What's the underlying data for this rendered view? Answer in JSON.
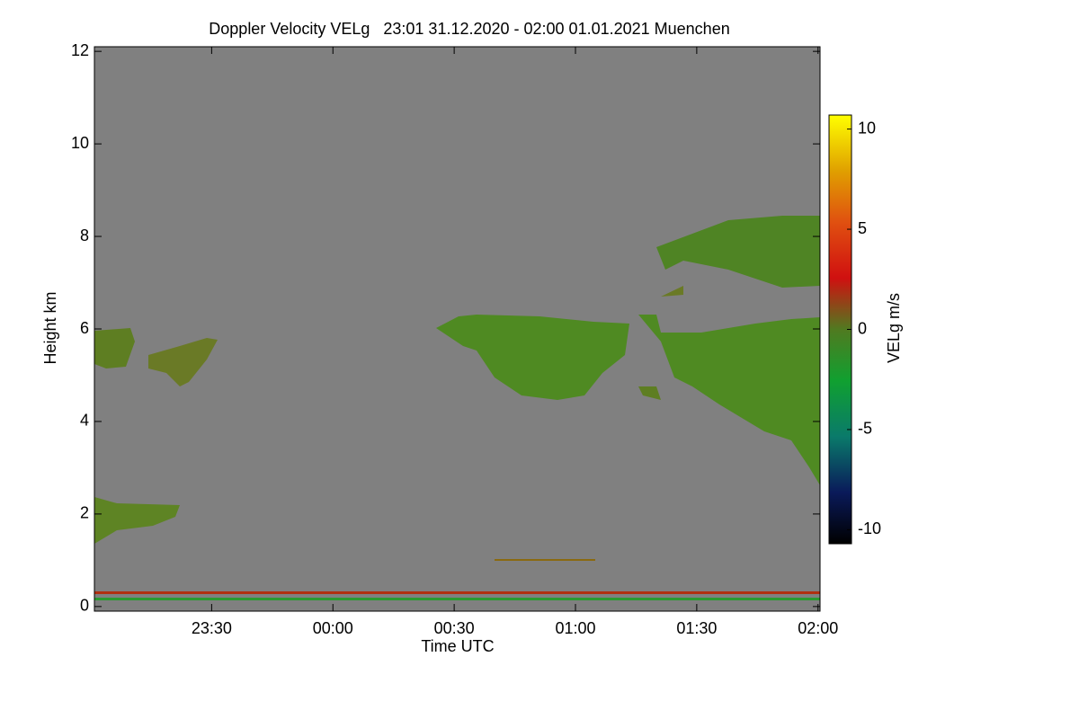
{
  "chart_data": {
    "type": "heatmap",
    "title": "Doppler Velocity VELg   23:01 31.12.2020 - 02:00 01.01.2021 Muenchen",
    "x_label": "Time UTC",
    "y_label": "Height km",
    "xlim": [
      1,
      180.5
    ],
    "xticks": [
      {
        "value": 30,
        "label": "23:30"
      },
      {
        "value": 60,
        "label": "00:00"
      },
      {
        "value": 90,
        "label": "00:30"
      },
      {
        "value": 120,
        "label": "01:00"
      },
      {
        "value": 150,
        "label": "01:30"
      },
      {
        "value": 180,
        "label": "02:00"
      }
    ],
    "ylim": [
      -0.1,
      12.1
    ],
    "yticks": [
      0,
      2,
      4,
      6,
      8,
      10,
      12
    ],
    "colorbar": {
      "label": "VELg m/s",
      "lim": [
        -10.7,
        10.7
      ],
      "ticks": [
        -10,
        -5,
        0,
        5,
        10
      ]
    },
    "background": "#808080"
  }
}
